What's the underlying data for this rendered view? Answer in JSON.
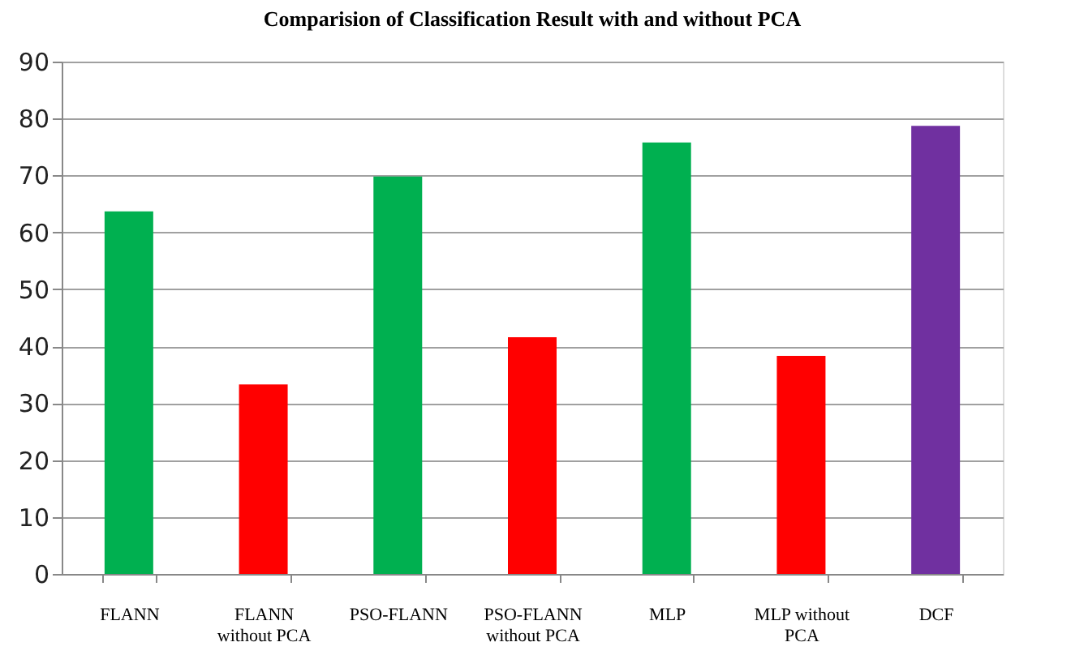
{
  "chart_data": {
    "type": "bar",
    "title": "Comparision of Classification Result with and without PCA",
    "categories": [
      "FLANN",
      "FLANN\nwithout PCA",
      "PSO-FLANN",
      "PSO-FLANN\nwithout PCA",
      "MLP",
      "MLP without\nPCA",
      "DCF"
    ],
    "values": [
      63.7,
      33.3,
      69.8,
      41.6,
      75.8,
      38.3,
      78.7
    ],
    "colors": [
      "#00b050",
      "#ff0000",
      "#00b050",
      "#ff0000",
      "#00b050",
      "#ff0000",
      "#7030a0"
    ],
    "ylim": [
      0,
      90
    ],
    "yticks": [
      0,
      10,
      20,
      30,
      40,
      50,
      60,
      70,
      80,
      90
    ],
    "grid": "y",
    "legend": false
  }
}
